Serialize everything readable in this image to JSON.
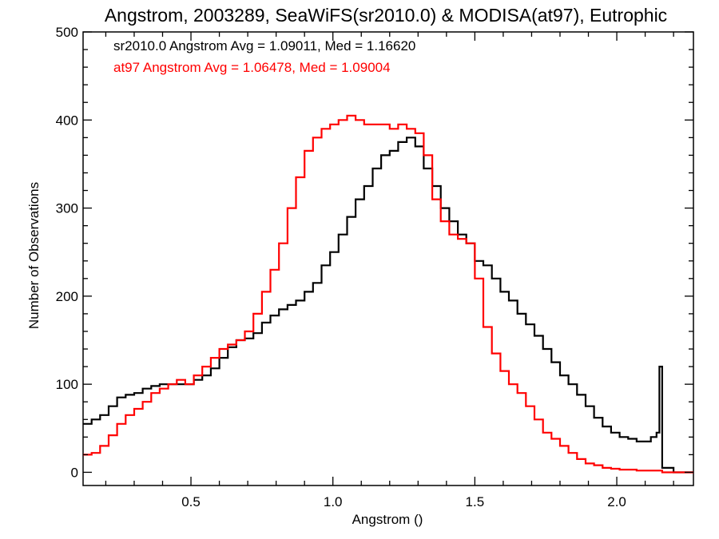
{
  "chart_data": {
    "type": "line",
    "step": true,
    "title": "Angstrom, 2003289, SeaWiFS(sr2010.0) & MODISA(at97), Eutrophic",
    "xlabel": "Angstrom ()",
    "ylabel": "Number of Observations",
    "xlim": [
      0.12,
      2.27
    ],
    "ylim": [
      -15,
      500
    ],
    "xticks": [
      0.5,
      1.0,
      1.5,
      2.0
    ],
    "xtick_labels": [
      "0.5",
      "1.0",
      "1.5",
      "2.0"
    ],
    "yticks": [
      0,
      100,
      200,
      300,
      400,
      500
    ],
    "ytick_labels": [
      "0",
      "100",
      "200",
      "300",
      "400",
      "500"
    ],
    "grid": false,
    "legend_position": "top-left",
    "annotations": [
      {
        "text": "sr2010.0 Angstrom Avg = 1.09011, Med = 1.16620",
        "color": "#000000"
      },
      {
        "text": "at97 Angstrom Avg = 1.06478, Med = 1.09004",
        "color": "#ff0000"
      }
    ],
    "series": [
      {
        "color": "#000000",
        "x": [
          0.12,
          0.15,
          0.18,
          0.21,
          0.24,
          0.27,
          0.3,
          0.33,
          0.36,
          0.39,
          0.42,
          0.45,
          0.48,
          0.51,
          0.54,
          0.57,
          0.6,
          0.63,
          0.66,
          0.69,
          0.72,
          0.75,
          0.78,
          0.81,
          0.84,
          0.87,
          0.9,
          0.93,
          0.96,
          0.99,
          1.02,
          1.05,
          1.08,
          1.11,
          1.14,
          1.17,
          1.2,
          1.23,
          1.26,
          1.29,
          1.32,
          1.35,
          1.38,
          1.41,
          1.44,
          1.47,
          1.5,
          1.53,
          1.56,
          1.59,
          1.62,
          1.65,
          1.68,
          1.71,
          1.74,
          1.77,
          1.8,
          1.83,
          1.86,
          1.89,
          1.92,
          1.95,
          1.98,
          2.01,
          2.04,
          2.07,
          2.1,
          2.12,
          2.14,
          2.15,
          2.16,
          2.2,
          2.27
        ],
        "y": [
          55,
          60,
          65,
          75,
          85,
          88,
          90,
          95,
          98,
          100,
          100,
          100,
          100,
          105,
          110,
          118,
          130,
          142,
          150,
          152,
          158,
          170,
          178,
          185,
          190,
          195,
          205,
          215,
          235,
          250,
          270,
          290,
          310,
          325,
          345,
          360,
          365,
          375,
          380,
          370,
          345,
          325,
          300,
          285,
          270,
          260,
          240,
          235,
          220,
          205,
          195,
          180,
          168,
          155,
          140,
          125,
          110,
          100,
          88,
          75,
          62,
          52,
          45,
          40,
          38,
          35,
          35,
          40,
          45,
          120,
          5,
          0,
          0
        ]
      },
      {
        "color": "#ff0000",
        "x": [
          0.12,
          0.15,
          0.18,
          0.21,
          0.24,
          0.27,
          0.3,
          0.33,
          0.36,
          0.39,
          0.42,
          0.45,
          0.48,
          0.51,
          0.54,
          0.57,
          0.6,
          0.63,
          0.66,
          0.69,
          0.72,
          0.75,
          0.78,
          0.81,
          0.84,
          0.87,
          0.9,
          0.93,
          0.96,
          0.99,
          1.02,
          1.05,
          1.08,
          1.11,
          1.14,
          1.17,
          1.2,
          1.23,
          1.26,
          1.29,
          1.32,
          1.35,
          1.38,
          1.41,
          1.44,
          1.47,
          1.5,
          1.53,
          1.56,
          1.59,
          1.62,
          1.65,
          1.68,
          1.71,
          1.74,
          1.77,
          1.8,
          1.83,
          1.86,
          1.89,
          1.92,
          1.95,
          1.98,
          2.01,
          2.04,
          2.07,
          2.1,
          2.12,
          2.14,
          2.15,
          2.16,
          2.2,
          2.27
        ],
        "y": [
          20,
          22,
          30,
          42,
          55,
          65,
          72,
          80,
          90,
          95,
          100,
          105,
          100,
          110,
          120,
          130,
          140,
          145,
          150,
          160,
          180,
          205,
          230,
          260,
          300,
          335,
          365,
          380,
          390,
          395,
          400,
          405,
          400,
          395,
          395,
          395,
          390,
          395,
          390,
          385,
          360,
          310,
          285,
          270,
          265,
          260,
          220,
          165,
          135,
          115,
          100,
          90,
          75,
          60,
          45,
          38,
          30,
          22,
          15,
          10,
          8,
          5,
          4,
          3,
          3,
          2,
          2,
          2,
          2,
          2,
          0,
          0,
          0
        ]
      }
    ]
  }
}
